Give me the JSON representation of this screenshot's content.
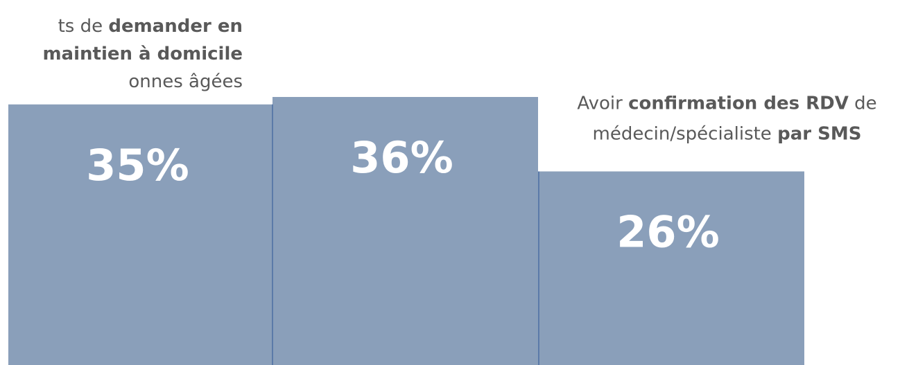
{
  "chart_data": {
    "type": "bar",
    "categories": [
      [
        [
          {
            "text": "ts de "
          },
          {
            "text": "demander en",
            "bold": true
          }
        ],
        [
          {
            "text": "maintien à domicile",
            "bold": true
          }
        ],
        [
          {
            "text": "onnes âgées"
          }
        ]
      ],
      null,
      [
        [
          {
            "text": "Avoir "
          },
          {
            "text": "confirmation des RDV",
            "bold": true
          },
          {
            "text": " de"
          }
        ],
        [
          {
            "text": "médecin/spécialiste "
          },
          {
            "text": "par SMS",
            "bold": true
          }
        ]
      ]
    ],
    "values": [
      35,
      36,
      26
    ],
    "value_labels": [
      "35%",
      "36%",
      "26%"
    ],
    "color": "#8a9fba",
    "edge_color": "#5b7aa8"
  }
}
